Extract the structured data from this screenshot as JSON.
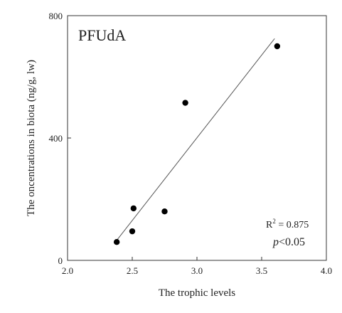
{
  "chart_data": {
    "type": "scatter",
    "title": "",
    "panel_label": "PFUdA",
    "xlabel": "The trophic levels",
    "ylabel": "The oncentrations in biota (ng/g, lw)",
    "xlim": [
      2.0,
      4.0
    ],
    "ylim": [
      0,
      800
    ],
    "x_ticks": [
      2.0,
      2.5,
      3.0,
      3.5,
      4.0
    ],
    "x_tick_labels": [
      "2.0",
      "2.5",
      "3.0",
      "3.5",
      "4.0"
    ],
    "y_ticks": [
      0,
      400,
      800
    ],
    "y_tick_labels": [
      "0",
      "400",
      "800"
    ],
    "grid": false,
    "points": [
      {
        "x": 2.38,
        "y": 60
      },
      {
        "x": 2.5,
        "y": 95
      },
      {
        "x": 2.51,
        "y": 170
      },
      {
        "x": 2.75,
        "y": 160
      },
      {
        "x": 2.91,
        "y": 515
      },
      {
        "x": 3.62,
        "y": 700
      }
    ],
    "trendline": {
      "x": [
        2.37,
        3.6
      ],
      "y": [
        60,
        725
      ]
    },
    "annotation_r2_label": "R",
    "annotation_r2_sup": "2",
    "annotation_r2_value": " = 0.875",
    "annotation_p_italic": "p",
    "annotation_p_rest": "<0.05",
    "colors": {
      "points": "#000000",
      "line": "#555555",
      "axis": "#333333"
    }
  }
}
